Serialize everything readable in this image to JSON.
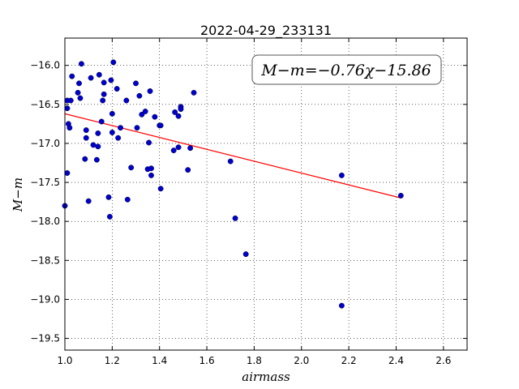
{
  "chart_data": {
    "type": "scatter",
    "title": "2022-04-29_233131",
    "xlabel": "airmass",
    "ylabel": "M−m",
    "xlim": [
      1.0,
      2.7
    ],
    "ylim": [
      -19.65,
      -15.65
    ],
    "x_ticks": [
      1.0,
      1.2,
      1.4,
      1.6,
      1.8,
      2.0,
      2.2,
      2.4,
      2.6
    ],
    "x_tick_labels": [
      "1.0",
      "1.2",
      "1.4",
      "1.6",
      "1.8",
      "2.0",
      "2.2",
      "2.4",
      "2.6"
    ],
    "y_ticks": [
      -16.0,
      -16.5,
      -17.0,
      -17.5,
      -18.0,
      -18.5,
      -19.0,
      -19.5
    ],
    "y_tick_labels": [
      "−16.0",
      "−16.5",
      "−17.0",
      "−17.5",
      "−18.0",
      "−18.5",
      "−19.0",
      "−19.5"
    ],
    "grid": true,
    "annotation": "M−m=−0.76χ−15.86",
    "annotation_position": "top-right",
    "fit_line": {
      "slope": -0.76,
      "intercept": -15.86,
      "x_range": [
        1.0,
        2.42
      ],
      "color": "#ff0000"
    },
    "point_color": "#0000cc",
    "series": [
      {
        "points": [
          [
            1.0,
            -17.8
          ],
          [
            1.01,
            -16.45
          ],
          [
            1.01,
            -16.55
          ],
          [
            1.01,
            -17.38
          ],
          [
            1.015,
            -16.75
          ],
          [
            1.02,
            -16.8
          ],
          [
            1.025,
            -16.45
          ],
          [
            1.03,
            -16.14
          ],
          [
            1.055,
            -16.35
          ],
          [
            1.06,
            -16.23
          ],
          [
            1.065,
            -16.42
          ],
          [
            1.07,
            -15.98
          ],
          [
            1.085,
            -17.2
          ],
          [
            1.09,
            -16.83
          ],
          [
            1.09,
            -16.93
          ],
          [
            1.1,
            -17.74
          ],
          [
            1.11,
            -16.16
          ],
          [
            1.12,
            -17.02
          ],
          [
            1.135,
            -17.21
          ],
          [
            1.14,
            -16.87
          ],
          [
            1.14,
            -17.04
          ],
          [
            1.145,
            -16.12
          ],
          [
            1.155,
            -16.72
          ],
          [
            1.16,
            -16.45
          ],
          [
            1.165,
            -16.22
          ],
          [
            1.165,
            -16.37
          ],
          [
            1.185,
            -17.69
          ],
          [
            1.19,
            -17.94
          ],
          [
            1.195,
            -16.19
          ],
          [
            1.2,
            -16.62
          ],
          [
            1.2,
            -16.86
          ],
          [
            1.205,
            -15.96
          ],
          [
            1.22,
            -16.3
          ],
          [
            1.225,
            -16.93
          ],
          [
            1.235,
            -16.8
          ],
          [
            1.26,
            -16.45
          ],
          [
            1.265,
            -17.72
          ],
          [
            1.28,
            -17.31
          ],
          [
            1.3,
            -16.23
          ],
          [
            1.305,
            -16.8
          ],
          [
            1.315,
            -16.39
          ],
          [
            1.325,
            -16.63
          ],
          [
            1.34,
            -16.59
          ],
          [
            1.35,
            -17.33
          ],
          [
            1.355,
            -16.99
          ],
          [
            1.36,
            -16.33
          ],
          [
            1.365,
            -17.41
          ],
          [
            1.365,
            -17.32
          ],
          [
            1.38,
            -16.66
          ],
          [
            1.4,
            -16.77
          ],
          [
            1.405,
            -17.58
          ],
          [
            1.405,
            -16.77
          ],
          [
            1.46,
            -17.09
          ],
          [
            1.465,
            -16.6
          ],
          [
            1.48,
            -16.65
          ],
          [
            1.48,
            -17.05
          ],
          [
            1.49,
            -16.53
          ],
          [
            1.49,
            -16.56
          ],
          [
            1.52,
            -17.34
          ],
          [
            1.53,
            -17.06
          ],
          [
            1.545,
            -16.35
          ],
          [
            1.7,
            -17.23
          ],
          [
            1.72,
            -17.96
          ],
          [
            1.765,
            -18.42
          ],
          [
            2.17,
            -17.41
          ],
          [
            2.17,
            -19.08
          ],
          [
            2.42,
            -17.67
          ]
        ]
      }
    ]
  }
}
